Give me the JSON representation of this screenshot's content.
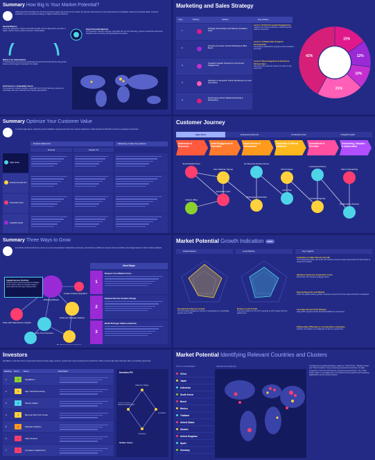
{
  "p1": {
    "title": "Summary",
    "sub": "How Big is Your Market Potential?",
    "intro": "While ExcelTrust benefits from the EU Cosmetics Figure the growth of the market, the growth underscores the vast potential that an adoptable market and potential higher customer acquisition via a competitive strategy of digital marketing solutions.",
    "h1": "Global Metrics",
    "t1": "Given the global EU market's estimated growth and the data-driven potential, a higher market share ensures long-term sustainability.",
    "h2": "High Potential Markets",
    "t2": "For expansion, Western Europe, especially the UK and Germany, present a solid base with open attitudes and an industry that appreciates innovation.",
    "h3": "Metrics for Switzerland",
    "t3": "In Switzerland's booming tech landscape, ExcelTrust should ride the fast-growth waves and leverage its reputation for quality.",
    "h4": "Soft Factors / Scalability Score",
    "t4": "For expansion, Western Europe, especially the UK and Germany, presents a solid base with open attitudes and industry appreciation."
  },
  "p2": {
    "title": "Marketing and Sales Strategy",
    "headers": [
      "Type",
      "Priority",
      "Activity",
      "Key Actions"
    ],
    "rows": [
      {
        "n": "1",
        "a": "Strategic Partnerships with Startup Incubation Hubs"
      },
      {
        "n": "2",
        "a": "Precision-Focused Content Marketing & SEO Boost"
      },
      {
        "n": "3",
        "a": "Targeted LinkedIn Outreach & Community Engagement"
      },
      {
        "n": "4",
        "a": "Webinars & Interactive Online Workshops for Lead Generation"
      },
      {
        "n": "5",
        "a": "Performance-Driven Digital Advertising & Retargeting"
      }
    ],
    "levels": [
      {
        "h": "Level 1: Initial Ecosystem Engagement",
        "t": "Tapping into existing networks to attract specific startup companies."
      },
      {
        "h": "Level 2: Collaborative Program Development",
        "t": "Developing collaborative programs with incubators and hubs."
      },
      {
        "h": "Level 3: Deep Integration & Exclusive Partnerships",
        "t": "Becoming the preferred partner of choice in key segments."
      }
    ],
    "pie": [
      {
        "v": 15,
        "c": "#e0198a"
      },
      {
        "v": 12,
        "c": "#9a2ad6"
      },
      {
        "v": 10,
        "c": "#c42fd0"
      },
      {
        "v": 21,
        "c": "#ff5fb7"
      },
      {
        "v": 42,
        "c": "#d61f78"
      }
    ],
    "pie_labels": [
      "15%",
      "12%",
      "10%",
      "21%",
      "42%"
    ]
  },
  "p3": {
    "title": "Summary",
    "sub": "Optimize Your Customer Value",
    "intro": "To attract Agile Ideas, enhancing expert validation assessments that cover startup-capital tiers, while EntrepreneurIB will be shown to strategic investments.",
    "cols": [
      "Product-Market-Fit",
      "Marketing & Sales Key Actions"
    ],
    "sub_cols": [
      "Persona",
      "Solution Fit"
    ],
    "personas": [
      "Agile Ideas",
      "Entrepreneurial Info",
      "Productive Pete",
      "Insightful Ingrid"
    ]
  },
  "p4": {
    "title": "Customer Journey",
    "tabs": [
      "Agile Ideas",
      "Entrepreneurial Info",
      "Productive Pete",
      "Insightful Ingrid"
    ],
    "stages": [
      "Awareness & Discovery",
      "Initial Engagement & Education",
      "Rapid Interest & Assessment",
      "Evaluation & Internal Validation",
      "Commitment & Purchase",
      "Onboarding, Adoption & Optimization"
    ],
    "labels": [
      "Social Media Posts",
      "User Webinar Signup",
      "On-Demand Product Demo",
      "ROI Analysis",
      "Customized Demo",
      "Client Onboarding",
      "Industry Blog",
      "Interactive Quiz",
      "Whitepaper Download",
      "Free Trial",
      "Contract Signing",
      "Performance Review"
    ]
  },
  "p5": {
    "title": "Summary",
    "sub": "Three Ways to Grow",
    "intro": "ExcelTrust would benefit from a focus on current strongholds in Switzerland, Germany, and Austria to solidify its customer base and define new linkage based on direct market feedback.",
    "tip_h": "Capital Service Portfolio",
    "tip": "Advanced tech-oriented products or software-centric tools to cater to a broader range of users within the tech-savvy startup niche.",
    "nodes": [
      "Existing Markets",
      "Scale Up Strategic Alliance",
      "Fine Tune Services",
      "Scale with Data-Driven Insights",
      "Strategic Alliances",
      "Bundled Customer Service",
      "Create Industry Specific Products"
    ],
    "next_h": "Next Steps",
    "steps": [
      {
        "n": "1",
        "h": "Deepen Core Market Focus"
      },
      {
        "n": "2",
        "h": "Expand Service Solution Range"
      },
      {
        "n": "3",
        "h": "Build Strategic Alliance Network"
      }
    ]
  },
  "p6": {
    "title": "Market Potential",
    "sub": "Growth Indication",
    "badge": "BETA",
    "cols": [
      "Global Metrics",
      "Local Metrics",
      "Key Insights"
    ],
    "insights": [
      {
        "h": "Capitalize on High Industry Growth",
        "t": "The substantial growth rate of the UK industry presents ample opportunities for ExcelTrust to expand its footprint."
      },
      {
        "h": "Optimize Customer Acquisition Costs",
        "t": "ExcelTrust CAC requires strategic action."
      },
      {
        "h": "Expand Beyond Local Market",
        "t": "Given the global industry growth, expansion beyond the local market should be considered."
      },
      {
        "h": "Leverage Strong Profit Margins",
        "t": "High profit margins provide financial flexibility for investment."
      },
      {
        "h": "Differentiate Offerings in a Competitive Landscape",
        "t": "Industry competition is a challenge but also an opportunity."
      }
    ],
    "notes": [
      {
        "h": "Exceptional Industry Growth",
        "t": "The UK Global Intelligence industry is expanding at a remarkable growth rate of 18%."
      },
      {
        "h": "Robust Local Growth",
        "t": "The local industry for the UK is growing at 12%, higher than the global trend."
      }
    ]
  },
  "p7": {
    "title": "Investors",
    "intro": "SpinaBoom, with their focus on European Seed and early stage ventures, presents the most promising fit for ExcelTrust. Other investors like High-Yield also offer a compelling opportunity.",
    "headers": [
      "Ranking",
      "Score",
      "Name",
      "Description"
    ],
    "rows": [
      {
        "r": "1",
        "s": "4",
        "n": "SpinaBoom"
      },
      {
        "r": "2",
        "s": "3",
        "n": "Hign Yield Ehrenerberg"
      },
      {
        "r": "3",
        "s": "3",
        "n": "Startup Capital"
      },
      {
        "r": "4",
        "s": "3",
        "n": "Blug and Play Tech Center"
      },
      {
        "r": "5",
        "s": "3",
        "n": "StarGate Solutions"
      },
      {
        "r": "6",
        "s": "2",
        "n": "Atlas Ventures"
      },
      {
        "r": "7",
        "s": "2",
        "n": "Innovation Capital Fund"
      }
    ],
    "fit_h": "Investor-Fit",
    "fit_labels": [
      "Maturity Stage",
      "Business Model & Startup Characteristics",
      "Location",
      "Industry"
    ],
    "similar": "Similar Cases"
  },
  "p8": {
    "title": "Market Potential",
    "sub": "Identifying Relevant Countries and Clusters",
    "top_label": "TOP 12 COUNTRIES*",
    "growth_label": "GROWTH POTENTIAL",
    "countries": [
      "China",
      "Japan",
      "Indonesia",
      "South Korea",
      "Brazil",
      "Mexico",
      "Thailand",
      "United States",
      "Ukraine",
      "United Kingdom",
      "Spain",
      "Germany"
    ],
    "text": "Considering the global landscape, regions in \"Thick Profit\", \"Medium Surge\" and \"Niche Gradient\" show promising potential for ExcelTrust. Smaller companies in the UK and Germany represent great partners. The \"Thick Profit\" region is compelling due to its rapid economic growth and increasing digitalization across various sectors."
  }
}
